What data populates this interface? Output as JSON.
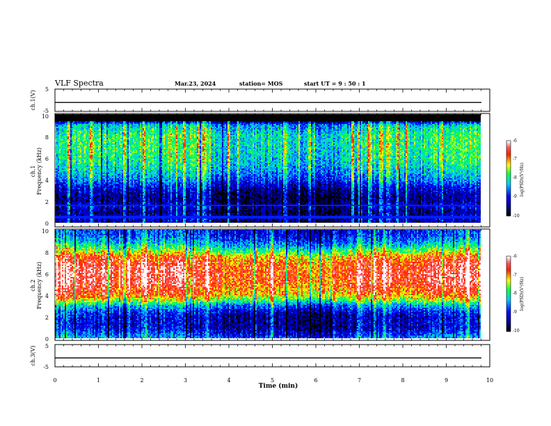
{
  "header": {
    "title": "VLF Spectra",
    "date": "Mar.23, 2024",
    "station": "station= MOS",
    "start": "start  UT  =   9  : 50 : 1"
  },
  "chart_data": [
    {
      "type": "line",
      "panel": "ch1-waveform",
      "ylabel": "ch.1(V)",
      "ylim": [
        -5,
        5
      ],
      "yticks": [
        "5",
        "-5"
      ],
      "xlim": [
        0,
        10
      ],
      "series": [
        {
          "values_description_level": -1.0
        }
      ]
    },
    {
      "type": "heatmap",
      "panel": "ch1-spectrogram",
      "ylabel": "ch.1\nFrequency (kHz)",
      "ylabel_lines": [
        "ch.1",
        "Frequency (kHz)"
      ],
      "ylim": [
        0,
        10
      ],
      "yticks": [
        "0",
        "2",
        "4",
        "6",
        "8",
        "10"
      ],
      "xlim": [
        0,
        9.8
      ],
      "colorbar": {
        "label": "log(PSD)(V²/Hz)",
        "range": [
          -10,
          -6
        ],
        "ticks": [
          "-6",
          "-7",
          "-8",
          "-9",
          "-10"
        ]
      },
      "profile_log_psd": {
        "freq_khz": [
          0,
          0.5,
          1,
          1.5,
          2,
          2.5,
          3,
          3.5,
          4,
          5,
          6,
          7,
          8,
          8.5,
          9,
          9.5,
          10
        ],
        "value": [
          -9.6,
          -9.4,
          -9.7,
          -9.3,
          -9.7,
          -9.6,
          -9.4,
          -9.1,
          -8.7,
          -8.3,
          -8.1,
          -8.0,
          -8.0,
          -8.2,
          -8.4,
          -10,
          -10
        ]
      }
    },
    {
      "type": "heatmap",
      "panel": "ch2-spectrogram",
      "ylabel_lines": [
        "ch.2",
        "Frequency (kHz)"
      ],
      "ylim": [
        0,
        10
      ],
      "yticks": [
        "0",
        "2",
        "4",
        "6",
        "8",
        "10"
      ],
      "xlim": [
        0,
        9.8
      ],
      "colorbar": {
        "label": "log(PSD)(V²/Hz)",
        "range": [
          -10,
          -6
        ],
        "ticks": [
          "-6",
          "-7",
          "-8",
          "-9",
          "-10"
        ]
      },
      "profile_log_psd": {
        "freq_khz": [
          0,
          0.5,
          1,
          2,
          2.5,
          3,
          3.5,
          4,
          5,
          6,
          7,
          7.5,
          8,
          8.5,
          9,
          9.5,
          10
        ],
        "value": [
          -8.6,
          -9.0,
          -9.3,
          -9.3,
          -9.0,
          -8.5,
          -7.6,
          -7.0,
          -6.6,
          -6.5,
          -6.7,
          -7.0,
          -7.6,
          -8.2,
          -8.6,
          -8.9,
          -9.0
        ]
      }
    },
    {
      "type": "line",
      "panel": "ch3-waveform",
      "ylabel": "ch.3(V)",
      "ylim": [
        -5,
        5
      ],
      "yticks": [
        "5",
        "-5"
      ],
      "xlim": [
        0,
        10
      ],
      "series": [
        {
          "values_description_level": -1.0
        }
      ]
    }
  ],
  "xaxis": {
    "label": "Time  (min)",
    "ticks": [
      "0",
      "1",
      "2",
      "3",
      "4",
      "5",
      "6",
      "7",
      "8",
      "9",
      "10"
    ]
  },
  "colors": {
    "scale": [
      "#000000",
      "#0000ff",
      "#00c8ff",
      "#00ff50",
      "#ffff00",
      "#ff0000",
      "#ffffff"
    ]
  }
}
